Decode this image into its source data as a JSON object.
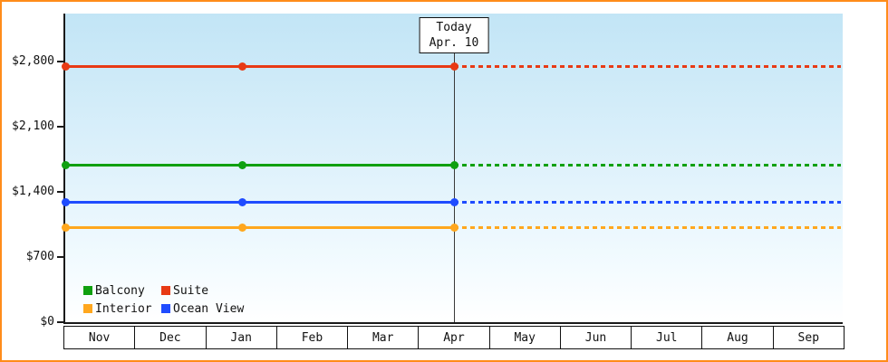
{
  "frame": {
    "border_color": "#ff8c1a"
  },
  "chart_data": {
    "type": "line",
    "x_categories": [
      "Nov",
      "Dec",
      "Jan",
      "Feb",
      "Mar",
      "Apr",
      "May",
      "Jun",
      "Jul",
      "Aug",
      "Sep"
    ],
    "y_ticks": [
      {
        "value": 0,
        "label": "$0"
      },
      {
        "value": 700,
        "label": "$700"
      },
      {
        "value": 1400,
        "label": "$1,400"
      },
      {
        "value": 2100,
        "label": "$2,100"
      },
      {
        "value": 2800,
        "label": "$2,800"
      }
    ],
    "ylim": [
      0,
      3300
    ],
    "today_marker": {
      "line1": "Today",
      "line2": "Apr. 10",
      "month": "Apr"
    },
    "projection": "dotted horizontal continuation after today through Sep at same values",
    "series": [
      {
        "name": "Suite",
        "color": "#e83a15",
        "value": 2750,
        "points": [
          {
            "month": "Nov",
            "at": "axis-start"
          },
          {
            "month": "Jan",
            "at": "month-center"
          },
          {
            "month": "Apr",
            "at": "today"
          }
        ]
      },
      {
        "name": "Balcony",
        "color": "#10a010",
        "value": 1685,
        "points": [
          {
            "month": "Nov",
            "at": "axis-start"
          },
          {
            "month": "Jan",
            "at": "month-center"
          },
          {
            "month": "Apr",
            "at": "today"
          }
        ]
      },
      {
        "name": "Ocean View",
        "color": "#1f4cff",
        "value": 1285,
        "points": [
          {
            "month": "Nov",
            "at": "axis-start"
          },
          {
            "month": "Jan",
            "at": "month-center"
          },
          {
            "month": "Apr",
            "at": "today"
          }
        ]
      },
      {
        "name": "Interior",
        "color": "#ffa71e",
        "value": 1020,
        "points": [
          {
            "month": "Nov",
            "at": "axis-start"
          },
          {
            "month": "Jan",
            "at": "month-center"
          },
          {
            "month": "Apr",
            "at": "today"
          }
        ]
      }
    ],
    "legend": [
      {
        "label": "Balcony",
        "color": "#10a010"
      },
      {
        "label": "Suite",
        "color": "#e83a15"
      },
      {
        "label": "Interior",
        "color": "#ffa71e"
      },
      {
        "label": "Ocean View",
        "color": "#1f4cff"
      }
    ]
  }
}
